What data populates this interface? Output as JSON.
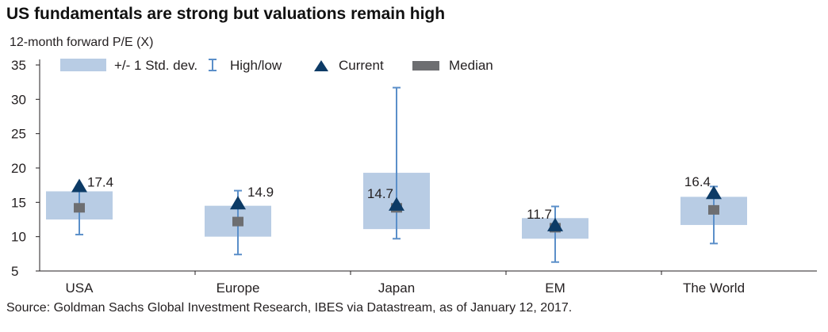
{
  "title": "US fundamentals are strong but valuations remain high",
  "source": "Source: Goldman Sachs Global Investment Research, IBES via Datastream, as of January 12, 2017.",
  "colors": {
    "std_band": "#b8cce4",
    "high_low": "#5b8fc9",
    "current": "#0d3b66",
    "median": "#6d6e71"
  },
  "chart_data": {
    "type": "box",
    "ylabel": "12-month forward P/E (X)",
    "ylim": [
      5,
      35
    ],
    "yticks": [
      5,
      10,
      15,
      20,
      25,
      30,
      35
    ],
    "legend": {
      "position": "top",
      "entries": [
        "+/- 1 Std. dev.",
        "High/low",
        "Current",
        "Median"
      ]
    },
    "categories": [
      "USA",
      "Europe",
      "Japan",
      "EM",
      "The World"
    ],
    "series": [
      {
        "category": "USA",
        "std_low": 12.5,
        "std_high": 16.6,
        "low": 10.3,
        "high": 17.4,
        "current": 17.4,
        "current_label": "17.4",
        "median": 14.2
      },
      {
        "category": "Europe",
        "std_low": 10.0,
        "std_high": 14.5,
        "low": 7.4,
        "high": 16.7,
        "current": 14.9,
        "current_label": "14.9",
        "median": 12.2
      },
      {
        "category": "Japan",
        "std_low": 11.1,
        "std_high": 19.3,
        "low": 9.7,
        "high": 31.7,
        "current": 14.7,
        "current_label": "14.7",
        "median": 14.2
      },
      {
        "category": "EM",
        "std_low": 9.7,
        "std_high": 12.7,
        "low": 6.3,
        "high": 14.4,
        "current": 11.7,
        "current_label": "11.7",
        "median": 11.3
      },
      {
        "category": "The World",
        "std_low": 11.7,
        "std_high": 15.8,
        "low": 9.0,
        "high": 17.3,
        "current": 16.4,
        "current_label": "16.4",
        "median": 13.9
      }
    ]
  }
}
